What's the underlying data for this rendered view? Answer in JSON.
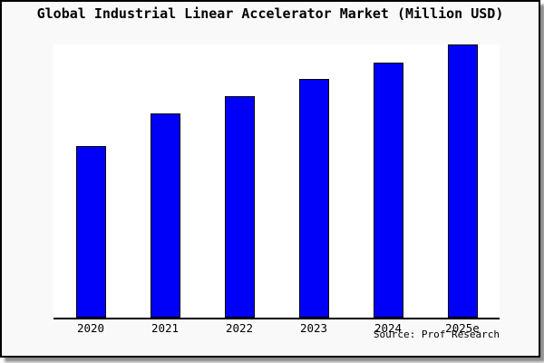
{
  "window": {
    "background_color": "#f9f9f9",
    "plot_background_color": "#ffffff",
    "border_color": "#000000"
  },
  "title": "Global Industrial Linear Accelerator Market (Million USD)",
  "source_note": "Source: Prof Research",
  "chart_data": {
    "type": "bar",
    "title": "Global Industrial Linear Accelerator Market (Million USD)",
    "units": "Million USD",
    "categories": [
      "2020",
      "2021",
      "2022",
      "2023",
      "2024",
      "2025e"
    ],
    "values": [
      62.8,
      74.8,
      81.1,
      87.4,
      93.4,
      99.9
    ],
    "value_units": "percent of tallest bar (chart shows no y-axis scale or data labels)",
    "xlabel": "",
    "ylabel": "",
    "y_axis_shown": false,
    "gridlines": false,
    "legend": "none",
    "bar_color": "#0000fa",
    "bar_border_color": "#000000",
    "annotations": [
      "Source: Prof Research"
    ]
  }
}
